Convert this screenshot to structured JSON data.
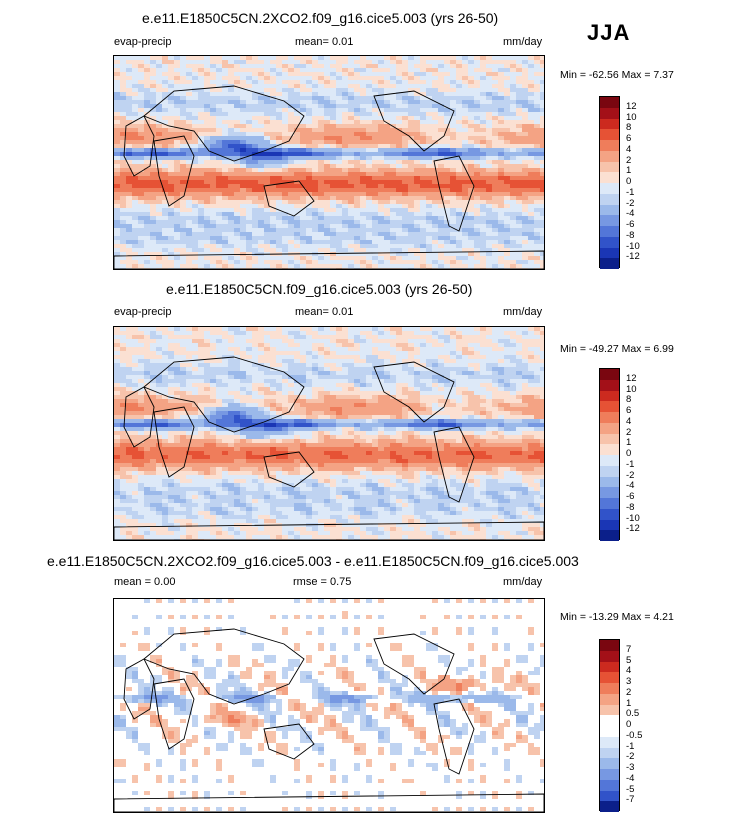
{
  "season": "JJA",
  "colors": {
    "pos": [
      "#FBE0D2",
      "#F7C3AB",
      "#F4A384",
      "#EF7D5B",
      "#E65235",
      "#CC2A1F",
      "#A31018",
      "#7A0610"
    ],
    "neg": [
      "#DDE9F8",
      "#BFD3F1",
      "#9BB9EA",
      "#7798E2",
      "#5376D8",
      "#3153C9",
      "#1A36B5",
      "#0B1F8A"
    ],
    "white": "#FFFFFF",
    "land_line": "#000000"
  },
  "panels": [
    {
      "title": "e.e11.E1850C5CN.2XCO2.f09_g16.cice5.003 (yrs 26-50)",
      "left_label": "evap-precip",
      "center_label": "mean=  0.01",
      "units": "mm/day",
      "minmax": "Min = -62.56 Max =  7.37",
      "colorbar_labels": [
        "12",
        "10",
        "8",
        "6",
        "4",
        "2",
        "1",
        "0",
        "-1",
        "-2",
        "-4",
        "-6",
        "-8",
        "-10",
        "-12"
      ],
      "colorbar_colors": [
        "#7A0610",
        "#A31018",
        "#CC2A1F",
        "#E65235",
        "#EF7D5B",
        "#F4A384",
        "#F7C3AB",
        "#FBE0D2",
        "#DDE9F8",
        "#BFD3F1",
        "#9BB9EA",
        "#7798E2",
        "#5376D8",
        "#3153C9",
        "#1A36B5",
        "#0B1F8A"
      ]
    },
    {
      "title": "e.e11.E1850C5CN.f09_g16.cice5.003 (yrs 26-50)",
      "left_label": "evap-precip",
      "center_label": "mean=  0.01",
      "units": "mm/day",
      "minmax": "Min = -49.27 Max =  6.99",
      "colorbar_labels": [
        "12",
        "10",
        "8",
        "6",
        "4",
        "2",
        "1",
        "0",
        "-1",
        "-2",
        "-4",
        "-6",
        "-8",
        "-10",
        "-12"
      ],
      "colorbar_colors": [
        "#7A0610",
        "#A31018",
        "#CC2A1F",
        "#E65235",
        "#EF7D5B",
        "#F4A384",
        "#F7C3AB",
        "#FBE0D2",
        "#DDE9F8",
        "#BFD3F1",
        "#9BB9EA",
        "#7798E2",
        "#5376D8",
        "#3153C9",
        "#1A36B5",
        "#0B1F8A"
      ]
    },
    {
      "title": "e.e11.E1850C5CN.2XCO2.f09_g16.cice5.003 - e.e11.E1850C5CN.f09_g16.cice5.003",
      "left_label": "mean =  0.00",
      "center_label": "rmse =  0.75",
      "units": "mm/day",
      "minmax": "Min = -13.29 Max =  4.21",
      "colorbar_labels": [
        "7",
        "5",
        "4",
        "3",
        "2",
        "1",
        "0.5",
        "0",
        "-0.5",
        "-1",
        "-2",
        "-3",
        "-4",
        "-5",
        "-7"
      ],
      "colorbar_colors": [
        "#7A0610",
        "#A31018",
        "#CC2A1F",
        "#E65235",
        "#EF7D5B",
        "#F4A384",
        "#F7C3AB",
        "#FFFFFF",
        "#FFFFFF",
        "#DDE9F8",
        "#BFD3F1",
        "#9BB9EA",
        "#7798E2",
        "#5376D8",
        "#3153C9",
        "#0B1F8A"
      ]
    }
  ]
}
